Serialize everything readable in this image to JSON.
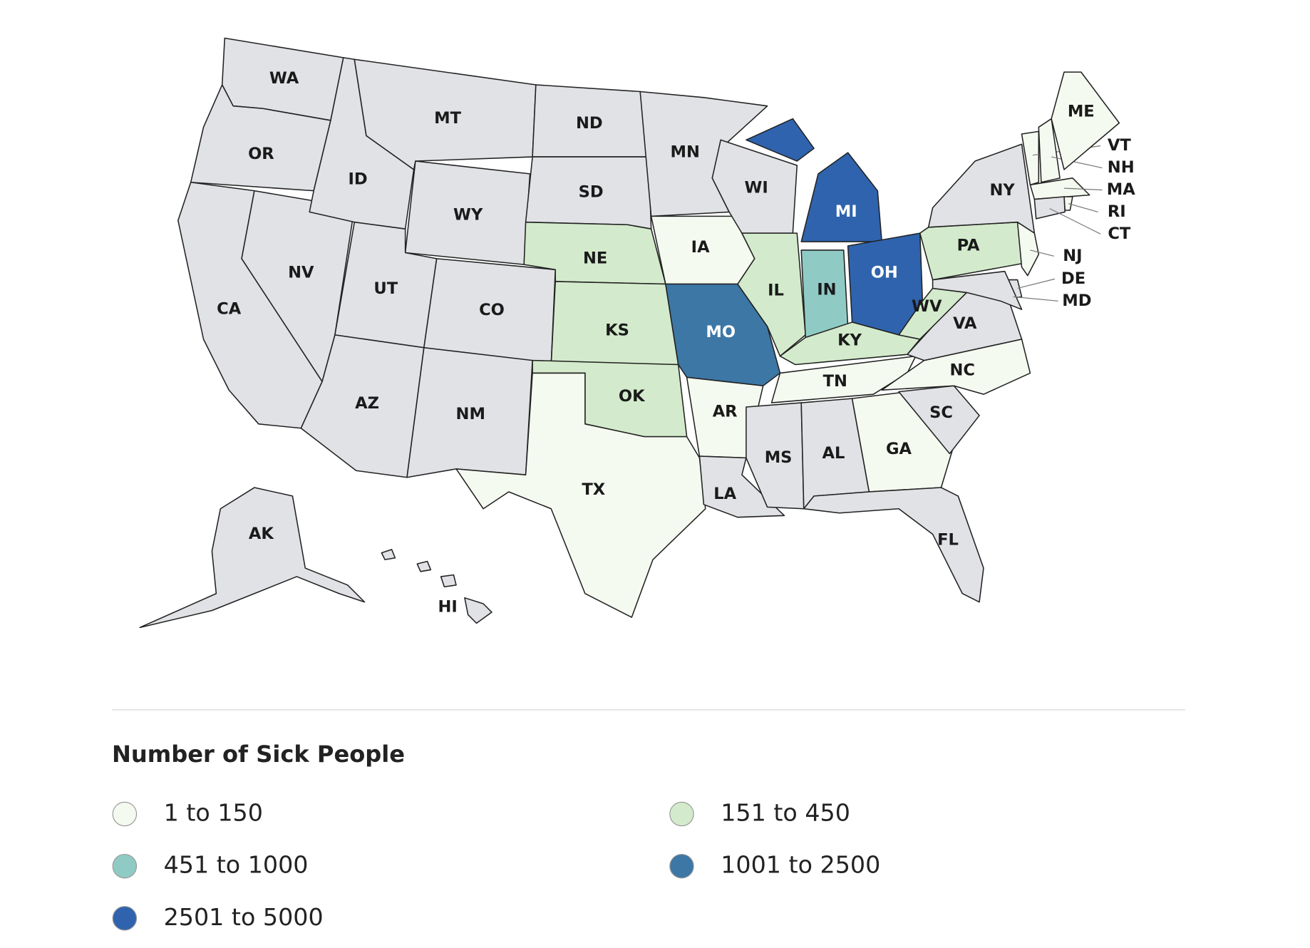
{
  "map": {
    "states": [
      {
        "label": "WA",
        "color": "#e1e2e6"
      },
      {
        "label": "OR",
        "color": "#e1e2e6"
      },
      {
        "label": "CA",
        "color": "#e1e2e6"
      },
      {
        "label": "NV",
        "color": "#e1e2e6"
      },
      {
        "label": "ID",
        "color": "#e1e2e6"
      },
      {
        "label": "MT",
        "color": "#e1e2e6"
      },
      {
        "label": "WY",
        "color": "#e1e2e6"
      },
      {
        "label": "UT",
        "color": "#e1e2e6"
      },
      {
        "label": "CO",
        "color": "#e1e2e6"
      },
      {
        "label": "AZ",
        "color": "#e1e2e6"
      },
      {
        "label": "NM",
        "color": "#e1e2e6"
      },
      {
        "label": "ND",
        "color": "#e1e2e6"
      },
      {
        "label": "SD",
        "color": "#e1e2e6"
      },
      {
        "label": "NE",
        "color": "#d3ebcc"
      },
      {
        "label": "KS",
        "color": "#d3ebcc"
      },
      {
        "label": "OK",
        "color": "#d3ebcc"
      },
      {
        "label": "TX",
        "color": "#f5faf0"
      },
      {
        "label": "MN",
        "color": "#e1e2e6"
      },
      {
        "label": "IA",
        "color": "#f5faf0"
      },
      {
        "label": "MO",
        "color": "#3c77a6"
      },
      {
        "label": "AR",
        "color": "#f5faf0"
      },
      {
        "label": "LA",
        "color": "#e1e2e6"
      },
      {
        "label": "WI",
        "color": "#e1e2e6"
      },
      {
        "label": "IL",
        "color": "#d3ebcc"
      },
      {
        "label": "MI",
        "color": "#2f63ad"
      },
      {
        "label": "IN",
        "color": "#8fcbc4"
      },
      {
        "label": "OH",
        "color": "#2f63ad"
      },
      {
        "label": "KY",
        "color": "#d3ebcc"
      },
      {
        "label": "TN",
        "color": "#f5faf0"
      },
      {
        "label": "MS",
        "color": "#e1e2e6"
      },
      {
        "label": "AL",
        "color": "#e1e2e6"
      },
      {
        "label": "GA",
        "color": "#f5faf0"
      },
      {
        "label": "FL",
        "color": "#e1e2e6"
      },
      {
        "label": "SC",
        "color": "#e1e2e6"
      },
      {
        "label": "NC",
        "color": "#f5faf0"
      },
      {
        "label": "VA",
        "color": "#e1e2e6"
      },
      {
        "label": "WV",
        "color": "#d3ebcc"
      },
      {
        "label": "PA",
        "color": "#d3ebcc"
      },
      {
        "label": "NY",
        "color": "#e1e2e6"
      },
      {
        "label": "NJ",
        "color": "#f5faf0"
      },
      {
        "label": "DE",
        "color": "#e1e2e6"
      },
      {
        "label": "MD",
        "color": "#e1e2e6"
      },
      {
        "label": "VT",
        "color": "#f5faf0"
      },
      {
        "label": "NH",
        "color": "#f5faf0"
      },
      {
        "label": "ME",
        "color": "#f5faf0"
      },
      {
        "label": "MA",
        "color": "#f5faf0"
      },
      {
        "label": "RI",
        "color": "#f5faf0"
      },
      {
        "label": "CT",
        "color": "#e1e2e6"
      },
      {
        "label": "AK",
        "color": "#e1e2e6"
      },
      {
        "label": "HI",
        "color": "#e1e2e6"
      }
    ]
  },
  "legend": {
    "title": "Number of Sick People",
    "items": [
      {
        "label": "1 to 150",
        "color": "#f5faf0"
      },
      {
        "label": "151 to 450",
        "color": "#d3ebcc"
      },
      {
        "label": "451 to 1000",
        "color": "#8fcbc4"
      },
      {
        "label": "1001 to 2500",
        "color": "#3c77a6"
      },
      {
        "label": "2501 to 5000",
        "color": "#2f63ad"
      }
    ]
  }
}
